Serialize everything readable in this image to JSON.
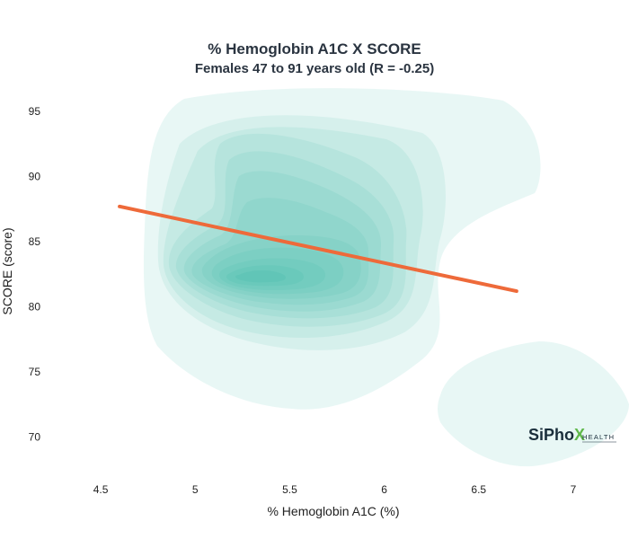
{
  "chart_data": {
    "type": "density-contour",
    "title": "% Hemoglobin A1C X SCORE",
    "subtitle": "Females 47 to 91 years old (R = -0.25)",
    "xlabel": "% Hemoglobin A1C (%)",
    "ylabel": "SCORE (score)",
    "xlim": [
      4.3,
      7.2
    ],
    "ylim": [
      67,
      97
    ],
    "xticks": [
      "4.5",
      "5",
      "5.5",
      "6",
      "6.5",
      "7"
    ],
    "yticks": [
      "70",
      "75",
      "80",
      "85",
      "90",
      "95"
    ],
    "regression_line": {
      "x": [
        4.6,
        6.7
      ],
      "y": [
        87.7,
        81.2
      ]
    },
    "density_peaks": [
      {
        "x": 5.3,
        "y": 82.1
      },
      {
        "x": 5.7,
        "y": 84.5
      },
      {
        "x": 6.8,
        "y": 72.0
      }
    ],
    "grid": false,
    "legend": "none",
    "colors": {
      "density": "#1fae9a",
      "regression": "#ee6a3a",
      "title": "#2a3440"
    }
  },
  "logo": {
    "brand": "SiPhoX",
    "sub": "HEALTH",
    "colors": {
      "text": "#1a2e3b",
      "x_left": "#5fb84a",
      "x_right": "#f5b731"
    }
  }
}
